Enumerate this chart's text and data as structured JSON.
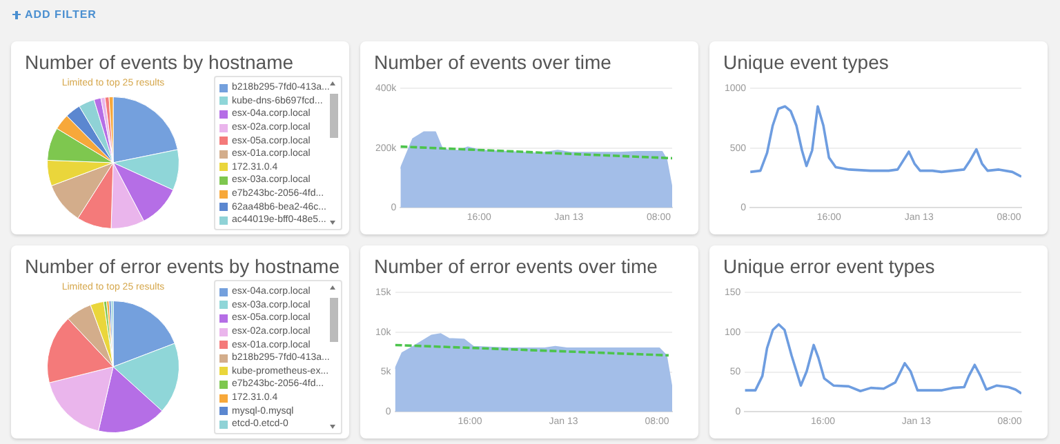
{
  "chart_data": [
    {
      "type": "other",
      "title": "ADD FILTER"
    },
    {
      "type": "pie",
      "title": "Number of events by hostname",
      "subtitle": "Limited to top 25 results",
      "legend": "right",
      "categories": [
        "b218b295-7fd0-413a...",
        "kube-dns-6b697fcd...",
        "esx-04a.corp.local",
        "esx-02a.corp.local",
        "esx-05a.corp.local",
        "esx-01a.corp.local",
        "172.31.0.4",
        "esx-03a.corp.local",
        "e7b243bc-2056-4fd...",
        "62aa48b6-bea2-46c...",
        "ac44019e-bff0-48e5...",
        null,
        null,
        null,
        null
      ],
      "values": [
        21.8,
        10,
        10.5,
        8.2,
        8.5,
        10.3,
        6.3,
        8.1,
        3.9,
        3.8,
        3.9,
        1.7,
        1.0,
        1.0,
        1.0
      ],
      "colors": [
        "#74a0dd",
        "#8fd6d8",
        "#b56ee6",
        "#eab5ec",
        "#f47a7a",
        "#d3ad8b",
        "#ead63b",
        "#7ec74f",
        "#f7a83a",
        "#5b87d0",
        "#8fd2d6",
        "#b56ee6",
        "#eab5ec",
        "#f47a7a",
        "#f7a83a"
      ]
    },
    {
      "type": "area",
      "title": "Number of events over time",
      "grid": "y",
      "xlim": [
        "--01-12T09:00",
        "--01-13T09:12"
      ],
      "xticks": [
        {
          "value": "--01-12T16:00",
          "label": "16:00"
        },
        {
          "value": "--01-13T00:00",
          "label": "Jan 13"
        },
        {
          "value": "--01-13T08:00",
          "label": "08:00"
        }
      ],
      "ylim": [
        0,
        400000
      ],
      "yticks": [
        0,
        {
          "value": 200000,
          "label": "200k"
        },
        {
          "value": 400000,
          "label": "400k"
        }
      ],
      "series": [
        {
          "type": "area",
          "color": "#a3bee8",
          "x": [
            "--01-12T09:00",
            "--01-12T10:06",
            "--01-12T11:06",
            "--01-12T12:06",
            "--01-12T12:42",
            "--01-12T13:18",
            "--01-12T14:12",
            "--01-12T15:00",
            "--01-12T16:12",
            "--01-12T18:36",
            "--01-12T21:24",
            "--01-12T23:00",
            "--01-13T00:12",
            "--01-13T04:30",
            "--01-13T06:06",
            "--01-13T08:18",
            "--01-13T08:42",
            "--01-13T09:12"
          ],
          "values": [
            131000,
            231000,
            254000,
            254000,
            200000,
            192000,
            192000,
            203000,
            192000,
            188000,
            182000,
            192000,
            185000,
            185000,
            188000,
            188000,
            162000,
            62000
          ]
        },
        {
          "type": "line",
          "line_style": "dashed",
          "color": "#4cc44c",
          "x": [
            "--01-12T09:00",
            "--01-13T09:12"
          ],
          "values": [
            205000,
            166000
          ]
        }
      ]
    },
    {
      "type": "line",
      "title": "Unique event types",
      "grid": "y",
      "xlim": [
        "--01-12T09:00",
        "--01-13T09:06"
      ],
      "xticks": [
        {
          "value": "--01-12T16:00",
          "label": "16:00"
        },
        {
          "value": "--01-13T00:00",
          "label": "Jan 13"
        },
        {
          "value": "--01-13T08:00",
          "label": "08:00"
        }
      ],
      "ylim": [
        0,
        1000
      ],
      "yticks": [
        0,
        500,
        1000
      ],
      "series": [
        {
          "color": "#6e9de0",
          "x": [
            "--01-12T09:00",
            "--01-12T09:54",
            "--01-12T10:30",
            "--01-12T11:00",
            "--01-12T11:30",
            "--01-12T12:06",
            "--01-12T12:36",
            "--01-12T13:06",
            "--01-12T13:36",
            "--01-12T14:00",
            "--01-12T14:30",
            "--01-12T15:00",
            "--01-12T15:30",
            "--01-12T16:00",
            "--01-12T16:36",
            "--01-12T17:48",
            "--01-12T19:42",
            "--01-12T21:18",
            "--01-12T22:06",
            "--01-12T23:06",
            "--01-12T23:36",
            "--01-13T00:06",
            "--01-13T01:12",
            "--01-13T02:00",
            "--01-13T04:00",
            "--01-13T04:30",
            "--01-13T05:06",
            "--01-13T05:36",
            "--01-13T06:06",
            "--01-13T07:06",
            "--01-13T08:18",
            "--01-13T09:06"
          ],
          "values": [
            300,
            310,
            460,
            690,
            830,
            850,
            810,
            690,
            480,
            350,
            480,
            850,
            690,
            420,
            340,
            320,
            310,
            310,
            320,
            470,
            370,
            310,
            310,
            300,
            320,
            390,
            490,
            370,
            310,
            320,
            300,
            260
          ]
        }
      ]
    },
    {
      "type": "pie",
      "title": "Number of error events by hostname",
      "subtitle": "Limited to top 25 results",
      "legend": "right",
      "categories": [
        "esx-04a.corp.local",
        "esx-03a.corp.local",
        "esx-05a.corp.local",
        "esx-02a.corp.local",
        "esx-01a.corp.local",
        "b218b295-7fd0-413a...",
        "kube-prometheus-ex...",
        "e7b243bc-2056-4fd...",
        "172.31.0.4",
        "mysql-0.mysql",
        "etcd-0.etcd-0"
      ],
      "values": [
        19.2,
        17.5,
        16.9,
        17.5,
        16.9,
        6.4,
        3.3,
        0.7,
        0.6,
        0.5,
        0.5
      ],
      "colors": [
        "#74a0dd",
        "#8fd6d8",
        "#b56ee6",
        "#eab5ec",
        "#f47a7a",
        "#d3ad8b",
        "#ead63b",
        "#7ec74f",
        "#f7a83a",
        "#5b87d0",
        "#8fd2d6"
      ]
    },
    {
      "type": "area",
      "title": "Number of error events over time",
      "grid": "y",
      "xlim": [
        "--01-12T09:36",
        "--01-13T09:18"
      ],
      "xticks": [
        {
          "value": "--01-12T16:00",
          "label": "16:00"
        },
        {
          "value": "--01-13T00:00",
          "label": "Jan 13"
        },
        {
          "value": "--01-13T08:00",
          "label": "08:00"
        }
      ],
      "ylim": [
        0,
        15000
      ],
      "yticks": [
        0,
        {
          "value": 5000,
          "label": "5k"
        },
        {
          "value": 10000,
          "label": "10k"
        },
        {
          "value": 15000,
          "label": "15k"
        }
      ],
      "series": [
        {
          "type": "area",
          "color": "#a3bee8",
          "x": [
            "--01-12T09:36",
            "--01-12T10:12",
            "--01-12T10:54",
            "--01-12T11:48",
            "--01-12T12:42",
            "--01-12T13:30",
            "--01-12T14:12",
            "--01-12T15:30",
            "--01-12T16:18",
            "--01-12T19:18",
            "--01-12T22:24",
            "--01-12T23:18",
            "--01-13T00:18",
            "--01-13T04:48",
            "--01-13T08:12",
            "--01-13T08:48",
            "--01-13T09:18"
          ],
          "values": [
            5400,
            7400,
            8000,
            8800,
            9600,
            9800,
            9200,
            9100,
            8200,
            8000,
            8000,
            8200,
            8000,
            8000,
            8000,
            7100,
            2800
          ]
        },
        {
          "type": "line",
          "line_style": "dashed",
          "color": "#4cc44c",
          "x": [
            "--01-12T09:36",
            "--01-13T09:00"
          ],
          "values": [
            8400,
            7100
          ]
        }
      ]
    },
    {
      "type": "line",
      "title": "Unique error event types",
      "grid": "y",
      "xlim": [
        "--01-12T09:18",
        "--01-13T09:00"
      ],
      "xticks": [
        {
          "value": "--01-12T16:00",
          "label": "16:00"
        },
        {
          "value": "--01-13T00:00",
          "label": "Jan 13"
        },
        {
          "value": "--01-13T08:00",
          "label": "08:00"
        }
      ],
      "ylim": [
        0,
        150
      ],
      "yticks": [
        0,
        50,
        100,
        150
      ],
      "series": [
        {
          "color": "#6e9de0",
          "x": [
            "--01-12T09:18",
            "--01-12T10:12",
            "--01-12T10:48",
            "--01-12T11:12",
            "--01-12T11:42",
            "--01-12T12:12",
            "--01-12T12:42",
            "--01-12T13:18",
            "--01-12T14:06",
            "--01-12T14:36",
            "--01-12T15:12",
            "--01-12T15:36",
            "--01-12T16:06",
            "--01-12T16:54",
            "--01-12T18:12",
            "--01-12T19:12",
            "--01-12T20:06",
            "--01-12T21:12",
            "--01-12T22:12",
            "--01-12T23:00",
            "--01-12T23:30",
            "--01-13T00:06",
            "--01-13T02:12",
            "--01-13T03:06",
            "--01-13T04:06",
            "--01-13T04:30",
            "--01-13T05:00",
            "--01-13T05:30",
            "--01-13T06:00",
            "--01-13T06:54",
            "--01-13T07:54",
            "--01-13T08:30",
            "--01-13T09:00"
          ],
          "values": [
            27,
            27,
            45,
            80,
            103,
            110,
            103,
            71,
            33,
            51,
            84,
            68,
            42,
            33,
            32,
            26,
            30,
            29,
            37,
            61,
            51,
            27,
            27,
            30,
            31,
            45,
            59,
            45,
            28,
            33,
            31,
            28,
            23
          ]
        }
      ]
    }
  ]
}
